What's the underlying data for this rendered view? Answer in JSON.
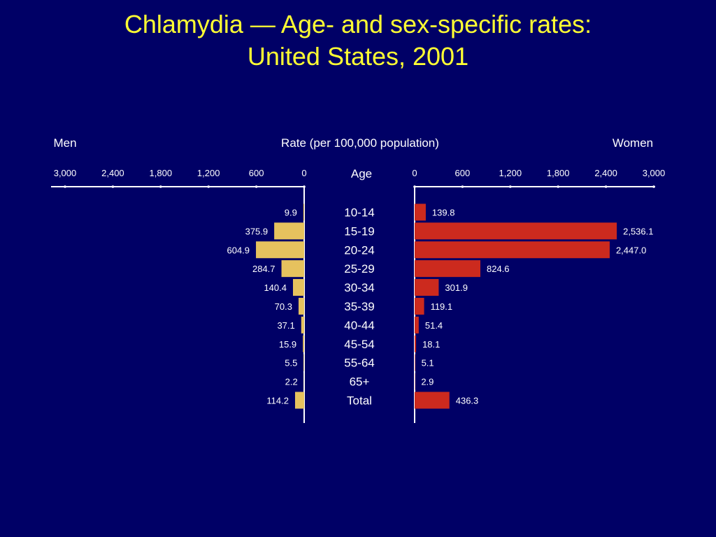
{
  "title_line1": "Chlamydia — Age- and sex-specific rates:",
  "title_line2": "United States, 2001",
  "colors": {
    "background": "#000066",
    "title": "#ffff33",
    "men": "#e6c25e",
    "women": "#cc2a1e",
    "axis": "#ffffff"
  },
  "chart_data": {
    "type": "bar",
    "orientation": "horizontal-back-to-back",
    "left_label": "Men",
    "center_label": "Rate (per 100,000 population)",
    "right_label": "Women",
    "category_label": "Age",
    "categories": [
      "10-14",
      "15-19",
      "20-24",
      "25-29",
      "30-34",
      "35-39",
      "40-44",
      "45-54",
      "55-64",
      "65+",
      "Total"
    ],
    "ticks": [
      0,
      600,
      1200,
      1800,
      2400,
      3000
    ],
    "tick_labels": [
      "0",
      "600",
      "1,200",
      "1,800",
      "2,400",
      "3,000"
    ],
    "xlim": [
      0,
      3000
    ],
    "series": [
      {
        "name": "Men",
        "values": [
          9.9,
          375.9,
          604.9,
          284.7,
          140.4,
          70.3,
          37.1,
          15.9,
          5.5,
          2.2,
          114.2
        ],
        "labels": [
          "9.9",
          "375.9",
          "604.9",
          "284.7",
          "140.4",
          "70.3",
          "37.1",
          "15.9",
          "5.5",
          "2.2",
          "114.2"
        ]
      },
      {
        "name": "Women",
        "values": [
          139.8,
          2536.1,
          2447.0,
          824.6,
          301.9,
          119.1,
          51.4,
          18.1,
          5.1,
          2.9,
          436.3
        ],
        "labels": [
          "139.8",
          "2,536.1",
          "2,447.0",
          "824.6",
          "301.9",
          "119.1",
          "51.4",
          "18.1",
          "5.1",
          "2.9",
          "436.3"
        ]
      }
    ]
  }
}
